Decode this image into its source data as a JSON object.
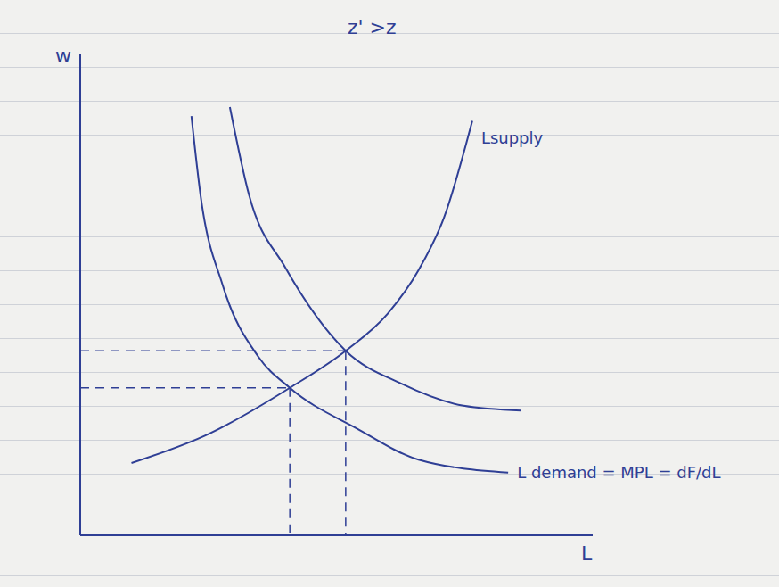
{
  "chart_data": {
    "type": "line",
    "title": "z' >z",
    "x_label": "L",
    "y_label": "w",
    "xlim": [
      0,
      10
    ],
    "ylim": [
      0,
      10
    ],
    "tick_labels": false,
    "grid": false,
    "series": [
      {
        "name": "Lsupply",
        "color": "#2f3f95",
        "line_style": "solid",
        "x": [
          1.0,
          2.5,
          4.09,
          5.18,
          6.0,
          6.6,
          7.1,
          7.65
        ],
        "values": [
          1.5,
          2.1,
          3.06,
          3.83,
          4.6,
          5.5,
          6.6,
          8.6
        ]
      },
      {
        "name": "L demand = MPL = dF/dL",
        "color": "#2f3f95",
        "line_style": "solid",
        "x": [
          2.17,
          2.35,
          2.78,
          3.48,
          4.09,
          5.39,
          6.6,
          8.35
        ],
        "values": [
          8.7,
          7.04,
          5.19,
          3.7,
          3.06,
          2.22,
          1.57,
          1.3
        ]
      },
      {
        "color": "#2f3f95",
        "line_style": "solid",
        "x": [
          2.92,
          3.3,
          4.0,
          5.18,
          6.26,
          7.48,
          8.6
        ],
        "values": [
          8.89,
          7.04,
          5.56,
          3.83,
          3.15,
          2.69,
          2.59
        ]
      },
      {
        "color": "#2f3f95",
        "line_style": "dashed",
        "x": [
          0,
          4.09
        ],
        "values": [
          3.06,
          3.06
        ]
      },
      {
        "color": "#2f3f95",
        "line_style": "dashed",
        "x": [
          4.09,
          4.09
        ],
        "values": [
          3.06,
          0
        ]
      },
      {
        "color": "#2f3f95",
        "line_style": "dashed",
        "x": [
          0,
          5.18
        ],
        "values": [
          3.83,
          3.83
        ]
      },
      {
        "color": "#2f3f95",
        "line_style": "dashed",
        "x": [
          5.18,
          5.18
        ],
        "values": [
          3.83,
          0
        ]
      }
    ]
  }
}
